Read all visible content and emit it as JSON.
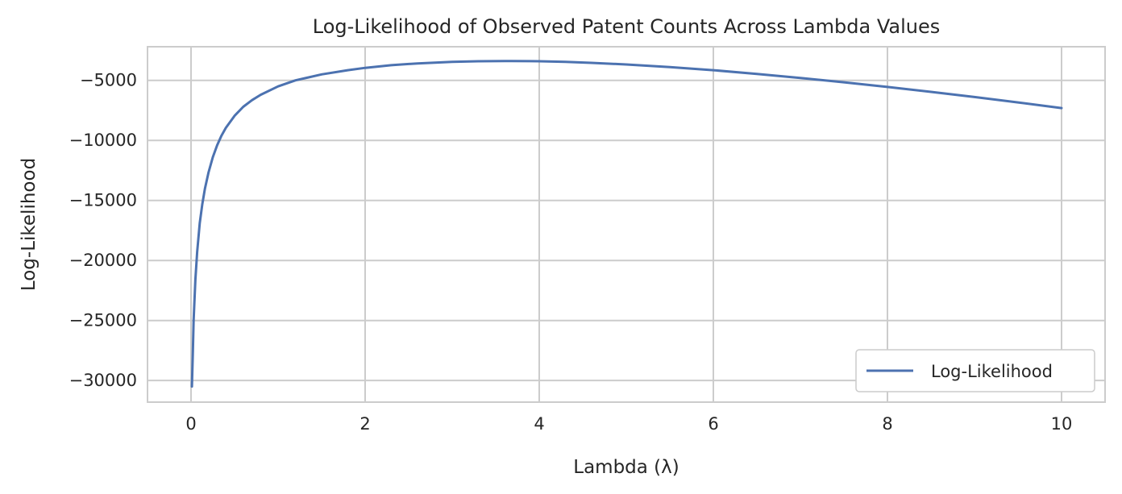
{
  "chart_data": {
    "type": "line",
    "title": "Log-Likelihood of Observed Patent Counts Across Lambda Values",
    "xlabel": "Lambda (λ)",
    "ylabel": "Log-Likelihood",
    "xlim": [
      -0.5,
      10.5
    ],
    "ylim": [
      -31800,
      -2200
    ],
    "xticks": [
      0,
      2,
      4,
      6,
      8,
      10
    ],
    "xtick_labels": [
      "0",
      "2",
      "4",
      "6",
      "8",
      "10"
    ],
    "yticks": [
      -5000,
      -10000,
      -15000,
      -20000,
      -25000,
      -30000
    ],
    "ytick_labels": [
      "−5000",
      "−10000",
      "−15000",
      "−20000",
      "−25000",
      "−30000"
    ],
    "grid": true,
    "legend_position": "lower-right",
    "series": [
      {
        "name": "Log-Likelihood",
        "color": "#4c72b0",
        "x": [
          0.01,
          0.02,
          0.03,
          0.05,
          0.07,
          0.1,
          0.13,
          0.16,
          0.2,
          0.25,
          0.3,
          0.35,
          0.4,
          0.5,
          0.6,
          0.7,
          0.8,
          1.0,
          1.2,
          1.5,
          1.8,
          2.0,
          2.3,
          2.6,
          3.0,
          3.3,
          3.6,
          3.9,
          4.0,
          4.3,
          4.6,
          5.0,
          5.5,
          6.0,
          6.5,
          7.0,
          7.5,
          8.0,
          8.5,
          9.0,
          9.5,
          10.0
        ],
        "values": [
          -30500,
          -27800,
          -25000,
          -21600,
          -19300,
          -16900,
          -15300,
          -14000,
          -12700,
          -11400,
          -10400,
          -9600,
          -8950,
          -7950,
          -7200,
          -6650,
          -6200,
          -5500,
          -5000,
          -4500,
          -4150,
          -3960,
          -3740,
          -3590,
          -3460,
          -3410,
          -3390,
          -3400,
          -3410,
          -3460,
          -3540,
          -3680,
          -3900,
          -4150,
          -4460,
          -4800,
          -5160,
          -5550,
          -5960,
          -6390,
          -6840,
          -7310
        ]
      }
    ]
  }
}
